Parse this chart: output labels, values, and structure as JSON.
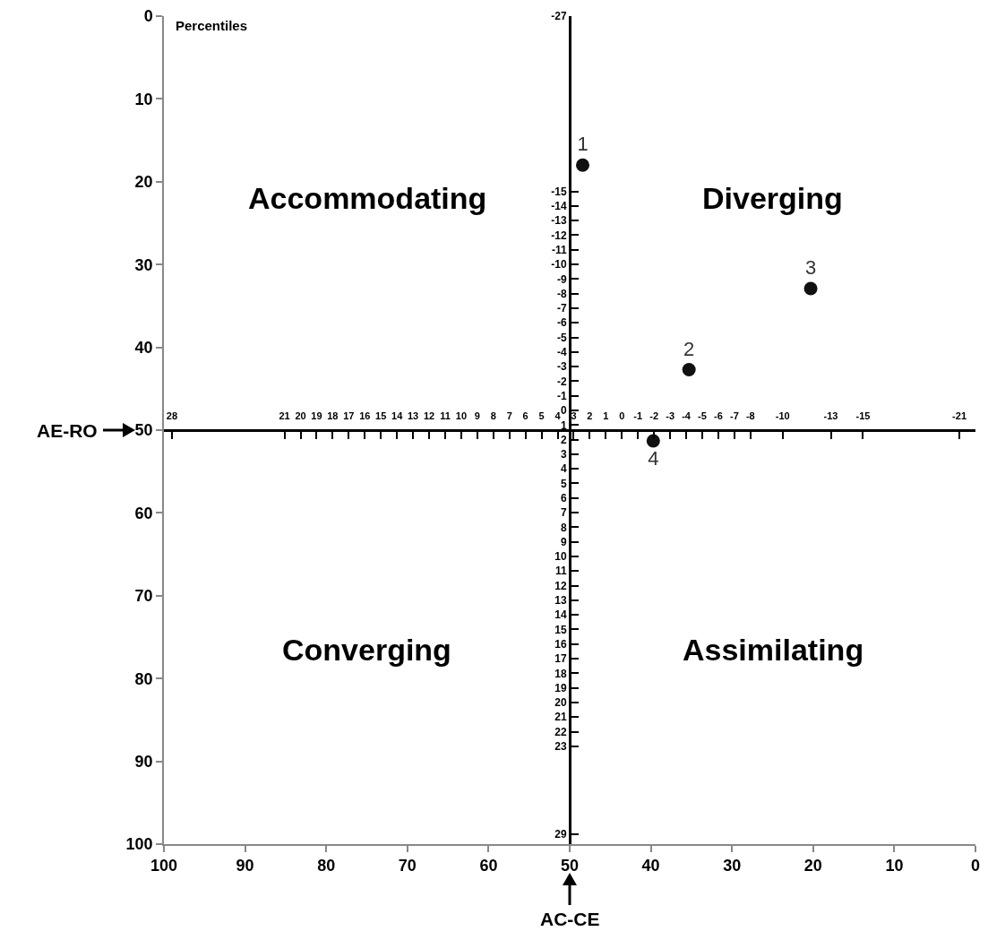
{
  "chart_data": {
    "type": "scatter",
    "xlabel": "AC-CE",
    "ylabel": "AE-RO",
    "series": [
      {
        "name": "1",
        "color": "#111111",
        "x": [
          48.4
        ],
        "values": [
          18.0
        ]
      },
      {
        "name": "2",
        "color": "#111111",
        "x": [
          35.3
        ],
        "values": [
          42.7
        ]
      },
      {
        "name": "3",
        "color": "#111111",
        "x": [
          20.3
        ],
        "values": [
          32.9
        ]
      },
      {
        "name": "4",
        "color": "#111111",
        "x": [
          39.7
        ],
        "values": [
          51.3
        ]
      }
    ],
    "marker": "circle",
    "xlim": [
      100,
      0
    ],
    "ylim": [
      100,
      0
    ],
    "xticks": [
      100,
      90,
      80,
      70,
      60,
      50,
      40,
      30,
      20,
      10,
      0
    ],
    "yticks": [
      0,
      10,
      20,
      30,
      40,
      50,
      60,
      70,
      80,
      90,
      100
    ],
    "x2lim": [
      28.5,
      -22.0
    ],
    "x2ticks": [
      28,
      21,
      20,
      19,
      18,
      17,
      16,
      15,
      14,
      13,
      12,
      11,
      10,
      9,
      8,
      7,
      6,
      5,
      4,
      3,
      2,
      1,
      0,
      -1,
      -2,
      -3,
      -4,
      -5,
      -6,
      -7,
      -8,
      -10,
      -13,
      -15,
      -21
    ],
    "y2lim": [
      29.7,
      -27.0
    ],
    "y2ticks": [
      -27,
      -15,
      -14,
      -13,
      -12,
      -11,
      -10,
      -9,
      -8,
      -7,
      -6,
      -5,
      -4,
      -3,
      -2,
      -1,
      0,
      1,
      2,
      3,
      4,
      5,
      6,
      7,
      8,
      9,
      10,
      11,
      12,
      13,
      14,
      15,
      16,
      17,
      18,
      19,
      20,
      21,
      22,
      23,
      29
    ],
    "annotations": [
      "Percentiles",
      "Accommodating",
      "Diverging",
      "Converging",
      "Assimilating"
    ],
    "grid": false,
    "legend": false
  }
}
